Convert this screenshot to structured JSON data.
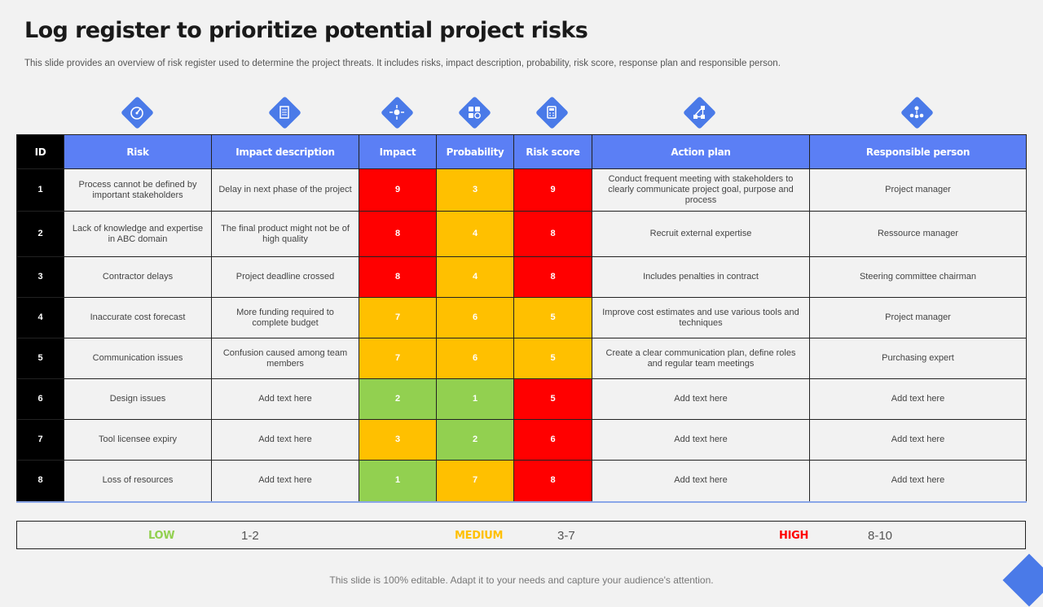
{
  "header": {
    "title": "Log register to prioritize potential project risks",
    "subtitle": "This slide provides an overview of risk register used to determine the project threats. It includes risks, impact description, probability, risk score, response plan and responsible person."
  },
  "colors": {
    "header_blue": "#5b7ff5",
    "id_black": "#000000",
    "high_red": "#ff0000",
    "medium_yellow": "#ffc000",
    "low_green": "#92d050",
    "accent_icon": "#4a7ae8"
  },
  "icons": [
    {
      "name": "gauge-icon",
      "column": "risk"
    },
    {
      "name": "document-icon",
      "column": "impact_description"
    },
    {
      "name": "target-arrows-icon",
      "column": "impact"
    },
    {
      "name": "dice-icon",
      "column": "probability"
    },
    {
      "name": "calculator-icon",
      "column": "risk_score"
    },
    {
      "name": "flowchart-icon",
      "column": "action_plan"
    },
    {
      "name": "team-icon",
      "column": "responsible_person"
    }
  ],
  "table": {
    "headers": {
      "id": "ID",
      "risk": "Risk",
      "impact_description": "Impact description",
      "impact": "Impact",
      "probability": "Probability",
      "risk_score": "Risk score",
      "action_plan": "Action plan",
      "responsible_person": "Responsible person"
    },
    "rows": [
      {
        "id": "1",
        "risk": "Process cannot be defined by important stakeholders",
        "impact_description": "Delay in next phase of the project",
        "impact": "9",
        "probability": "3",
        "risk_score": "9",
        "action_plan": "Conduct frequent meeting with stakeholders to clearly communicate project goal, purpose and process",
        "responsible_person": "Project manager"
      },
      {
        "id": "2",
        "risk": "Lack of knowledge and expertise in ABC domain",
        "impact_description": "The final product might not be of high quality",
        "impact": "8",
        "probability": "4",
        "risk_score": "8",
        "action_plan": "Recruit external expertise",
        "responsible_person": "Ressource manager"
      },
      {
        "id": "3",
        "risk": "Contractor delays",
        "impact_description": "Project deadline crossed",
        "impact": "8",
        "probability": "4",
        "risk_score": "8",
        "action_plan": "Includes penalties in contract",
        "responsible_person": "Steering committee chairman"
      },
      {
        "id": "4",
        "risk": "Inaccurate cost forecast",
        "impact_description": "More funding required to complete budget",
        "impact": "7",
        "probability": "6",
        "risk_score": "5",
        "action_plan": "Improve cost estimates and use various tools and techniques",
        "responsible_person": "Project manager"
      },
      {
        "id": "5",
        "risk": "Communication issues",
        "impact_description": "Confusion caused among team members",
        "impact": "7",
        "probability": "6",
        "risk_score": "5",
        "action_plan": "Create a clear communication plan, define roles and regular team meetings",
        "responsible_person": "Purchasing expert"
      },
      {
        "id": "6",
        "risk": "Design issues",
        "impact_description": "Add text here",
        "impact": "2",
        "probability": "1",
        "risk_score": "5",
        "action_plan": "Add text here",
        "responsible_person": "Add text here"
      },
      {
        "id": "7",
        "risk": "Tool licensee expiry",
        "impact_description": "Add text here",
        "impact": "3",
        "probability": "2",
        "risk_score": "6",
        "action_plan": "Add text here",
        "responsible_person": "Add text here"
      },
      {
        "id": "8",
        "risk": "Loss of resources",
        "impact_description": "Add text here",
        "impact": "1",
        "probability": "7",
        "risk_score": "8",
        "action_plan": "Add text here",
        "responsible_person": "Add text here"
      }
    ]
  },
  "legend": {
    "low_label": "LOW",
    "low_range": "1-2",
    "medium_label": "MEDIUM",
    "medium_range": "3-7",
    "high_label": "HIGH",
    "high_range": "8-10"
  },
  "footer": {
    "text": "This slide is 100% editable. Adapt it to your needs and capture your audience's attention."
  }
}
